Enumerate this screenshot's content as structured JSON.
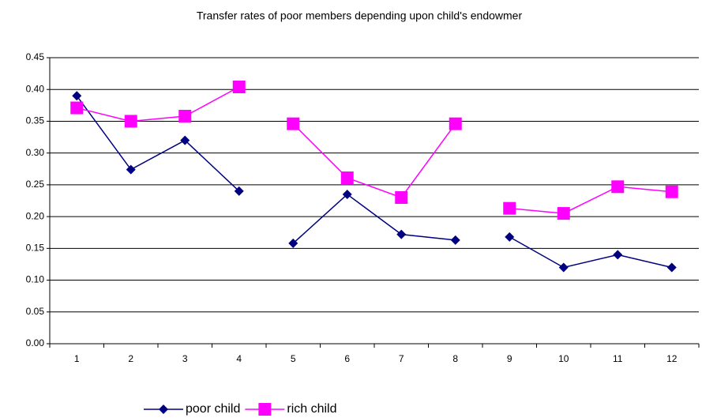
{
  "chart_data": {
    "type": "line",
    "title": "Transfer rates of poor members depending upon child's endowmer",
    "categories": [
      "1",
      "2",
      "3",
      "4",
      "5",
      "6",
      "7",
      "8",
      "9",
      "10",
      "11",
      "12"
    ],
    "series": [
      {
        "name": "poor child",
        "color": "#000080",
        "marker": "diamond",
        "values": [
          0.39,
          0.274,
          0.32,
          0.24,
          0.158,
          0.235,
          0.172,
          0.163,
          0.168,
          0.12,
          0.14,
          0.12
        ]
      },
      {
        "name": "rich child",
        "color": "#ff00ff",
        "marker": "square",
        "values": [
          0.371,
          0.35,
          0.358,
          0.404,
          0.346,
          0.261,
          0.23,
          0.346,
          0.213,
          0.205,
          0.247,
          0.239
        ]
      }
    ],
    "ylim": [
      0,
      0.45
    ],
    "yticks": [
      {
        "value": 0,
        "label": "0.00"
      },
      {
        "value": 0.05,
        "label": "0.05"
      },
      {
        "value": 0.1,
        "label": "0.10"
      },
      {
        "value": 0.15,
        "label": "0.15"
      },
      {
        "value": 0.2,
        "label": "0.20"
      },
      {
        "value": 0.25,
        "label": "0.25"
      },
      {
        "value": 0.3,
        "label": "0.30"
      },
      {
        "value": 0.35,
        "label": "0.35"
      },
      {
        "value": 0.4,
        "label": "0.40"
      },
      {
        "value": 0.45,
        "label": "0.45"
      }
    ],
    "grid": true,
    "legend": "bottom"
  }
}
